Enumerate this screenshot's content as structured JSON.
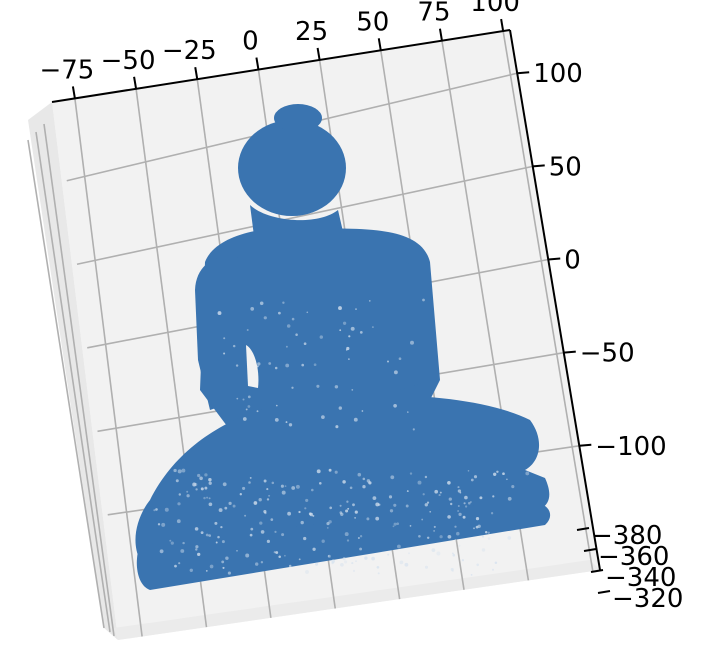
{
  "chart_data": {
    "type": "scatter",
    "projection": "3d",
    "title": "",
    "xlabel": "",
    "ylabel": "",
    "zlabel": "",
    "grid": true,
    "marker_color": "#3a74b0",
    "pane_colors": [
      "#f2f2f2",
      "#ebebeb",
      "#e6e6e6"
    ],
    "x_ticks": [
      "−75",
      "−50",
      "−25",
      "0",
      "25",
      "50",
      "75",
      "100"
    ],
    "y_ticks": [
      "100",
      "50",
      "0",
      "−50",
      "−100"
    ],
    "z_ticks": [
      "−380",
      "−360",
      "−340",
      "−320"
    ],
    "xlim": [
      -90,
      110
    ],
    "ylim": [
      -120,
      120
    ],
    "zlim": [
      -390,
      -310
    ],
    "series": [
      {
        "points_description": "dense point cloud of a seated figure",
        "color": "#3a74b0"
      }
    ]
  }
}
